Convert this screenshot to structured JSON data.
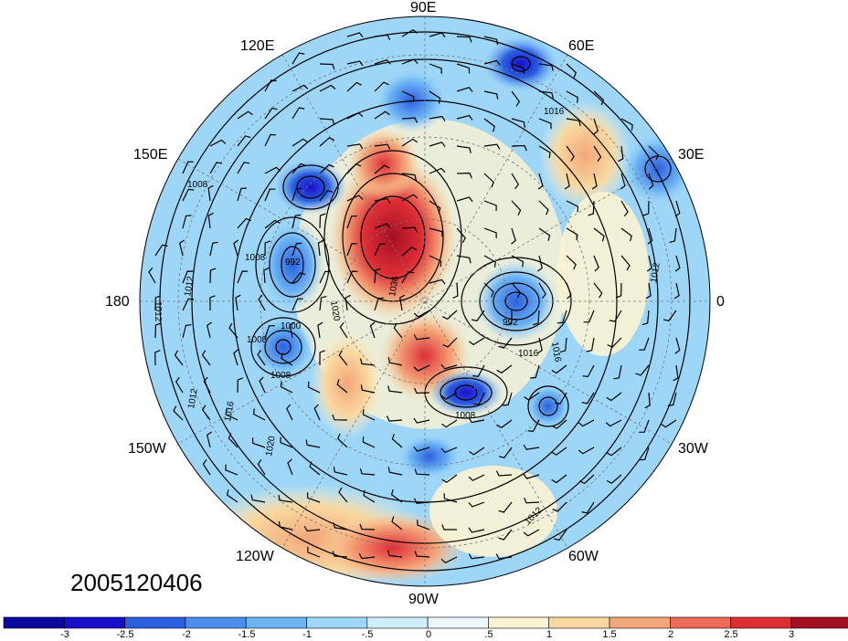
{
  "map": {
    "longitude_labels": [
      "90E",
      "60E",
      "30E",
      "0",
      "30W",
      "60W",
      "90W",
      "120W",
      "150W",
      "180",
      "150E",
      "120E"
    ],
    "date_stamp": "2005120406",
    "isobar_labels": [
      "1016",
      "1008",
      "1012",
      "1008",
      "992",
      "1012",
      "1008",
      "1000",
      "1020",
      "1036",
      "992",
      "1016",
      "1016",
      "1012",
      "1008",
      "1012",
      "1016",
      "1020",
      "1008",
      "1012"
    ]
  },
  "colorbar": {
    "labels": [
      "-3",
      "-2.5",
      "-2",
      "-1.5",
      "-1",
      "-.5",
      "0",
      ".5",
      "1",
      "1.5",
      "2",
      "2.5",
      "3"
    ],
    "colors": [
      "#1a0fc8",
      "#2b5fe0",
      "#4c8ef0",
      "#6db4f5",
      "#9ed6f8",
      "#cdeefa",
      "#eaf8fb",
      "#fbf3d2",
      "#f9d8a0",
      "#f4a67a",
      "#ee6b5a",
      "#dd2e36",
      "#a50f23"
    ]
  }
}
